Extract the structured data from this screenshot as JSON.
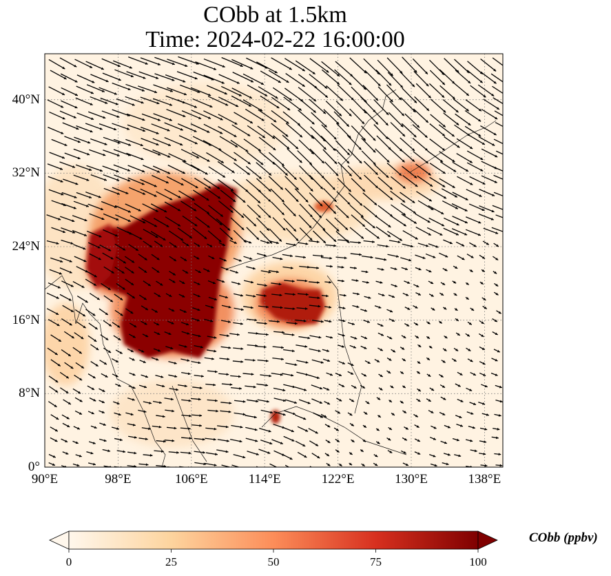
{
  "title_line1": "CObb at 1.5km",
  "title_line2": "Time: 2024-02-22 16:00:00",
  "map": {
    "lon_range": [
      90,
      140
    ],
    "lat_range": [
      0,
      45
    ],
    "lat_ticks": [
      "0°",
      "8°N",
      "16°N",
      "24°N",
      "32°N",
      "40°N"
    ],
    "lon_ticks": [
      "90°E",
      "98°E",
      "106°E",
      "114°E",
      "122°E",
      "130°E",
      "138°E"
    ],
    "lat_values": [
      0,
      8,
      16,
      24,
      32,
      40
    ],
    "lon_values": [
      90,
      98,
      106,
      114,
      122,
      130,
      138
    ],
    "gridline_style": "dotted",
    "overlay": "wind vectors (quiver)",
    "coastlines": true
  },
  "colorbar": {
    "label": "CObb (ppbv)",
    "ticks": [
      "0",
      "25",
      "50",
      "75",
      "100"
    ],
    "tick_values": [
      0,
      25,
      50,
      75,
      100
    ],
    "range": [
      0,
      100
    ],
    "colormap": "OrRd",
    "extend": "both",
    "colors": [
      "#fff7ec",
      "#fdd49e",
      "#fc8d59",
      "#d7301f",
      "#7f0000"
    ]
  }
}
